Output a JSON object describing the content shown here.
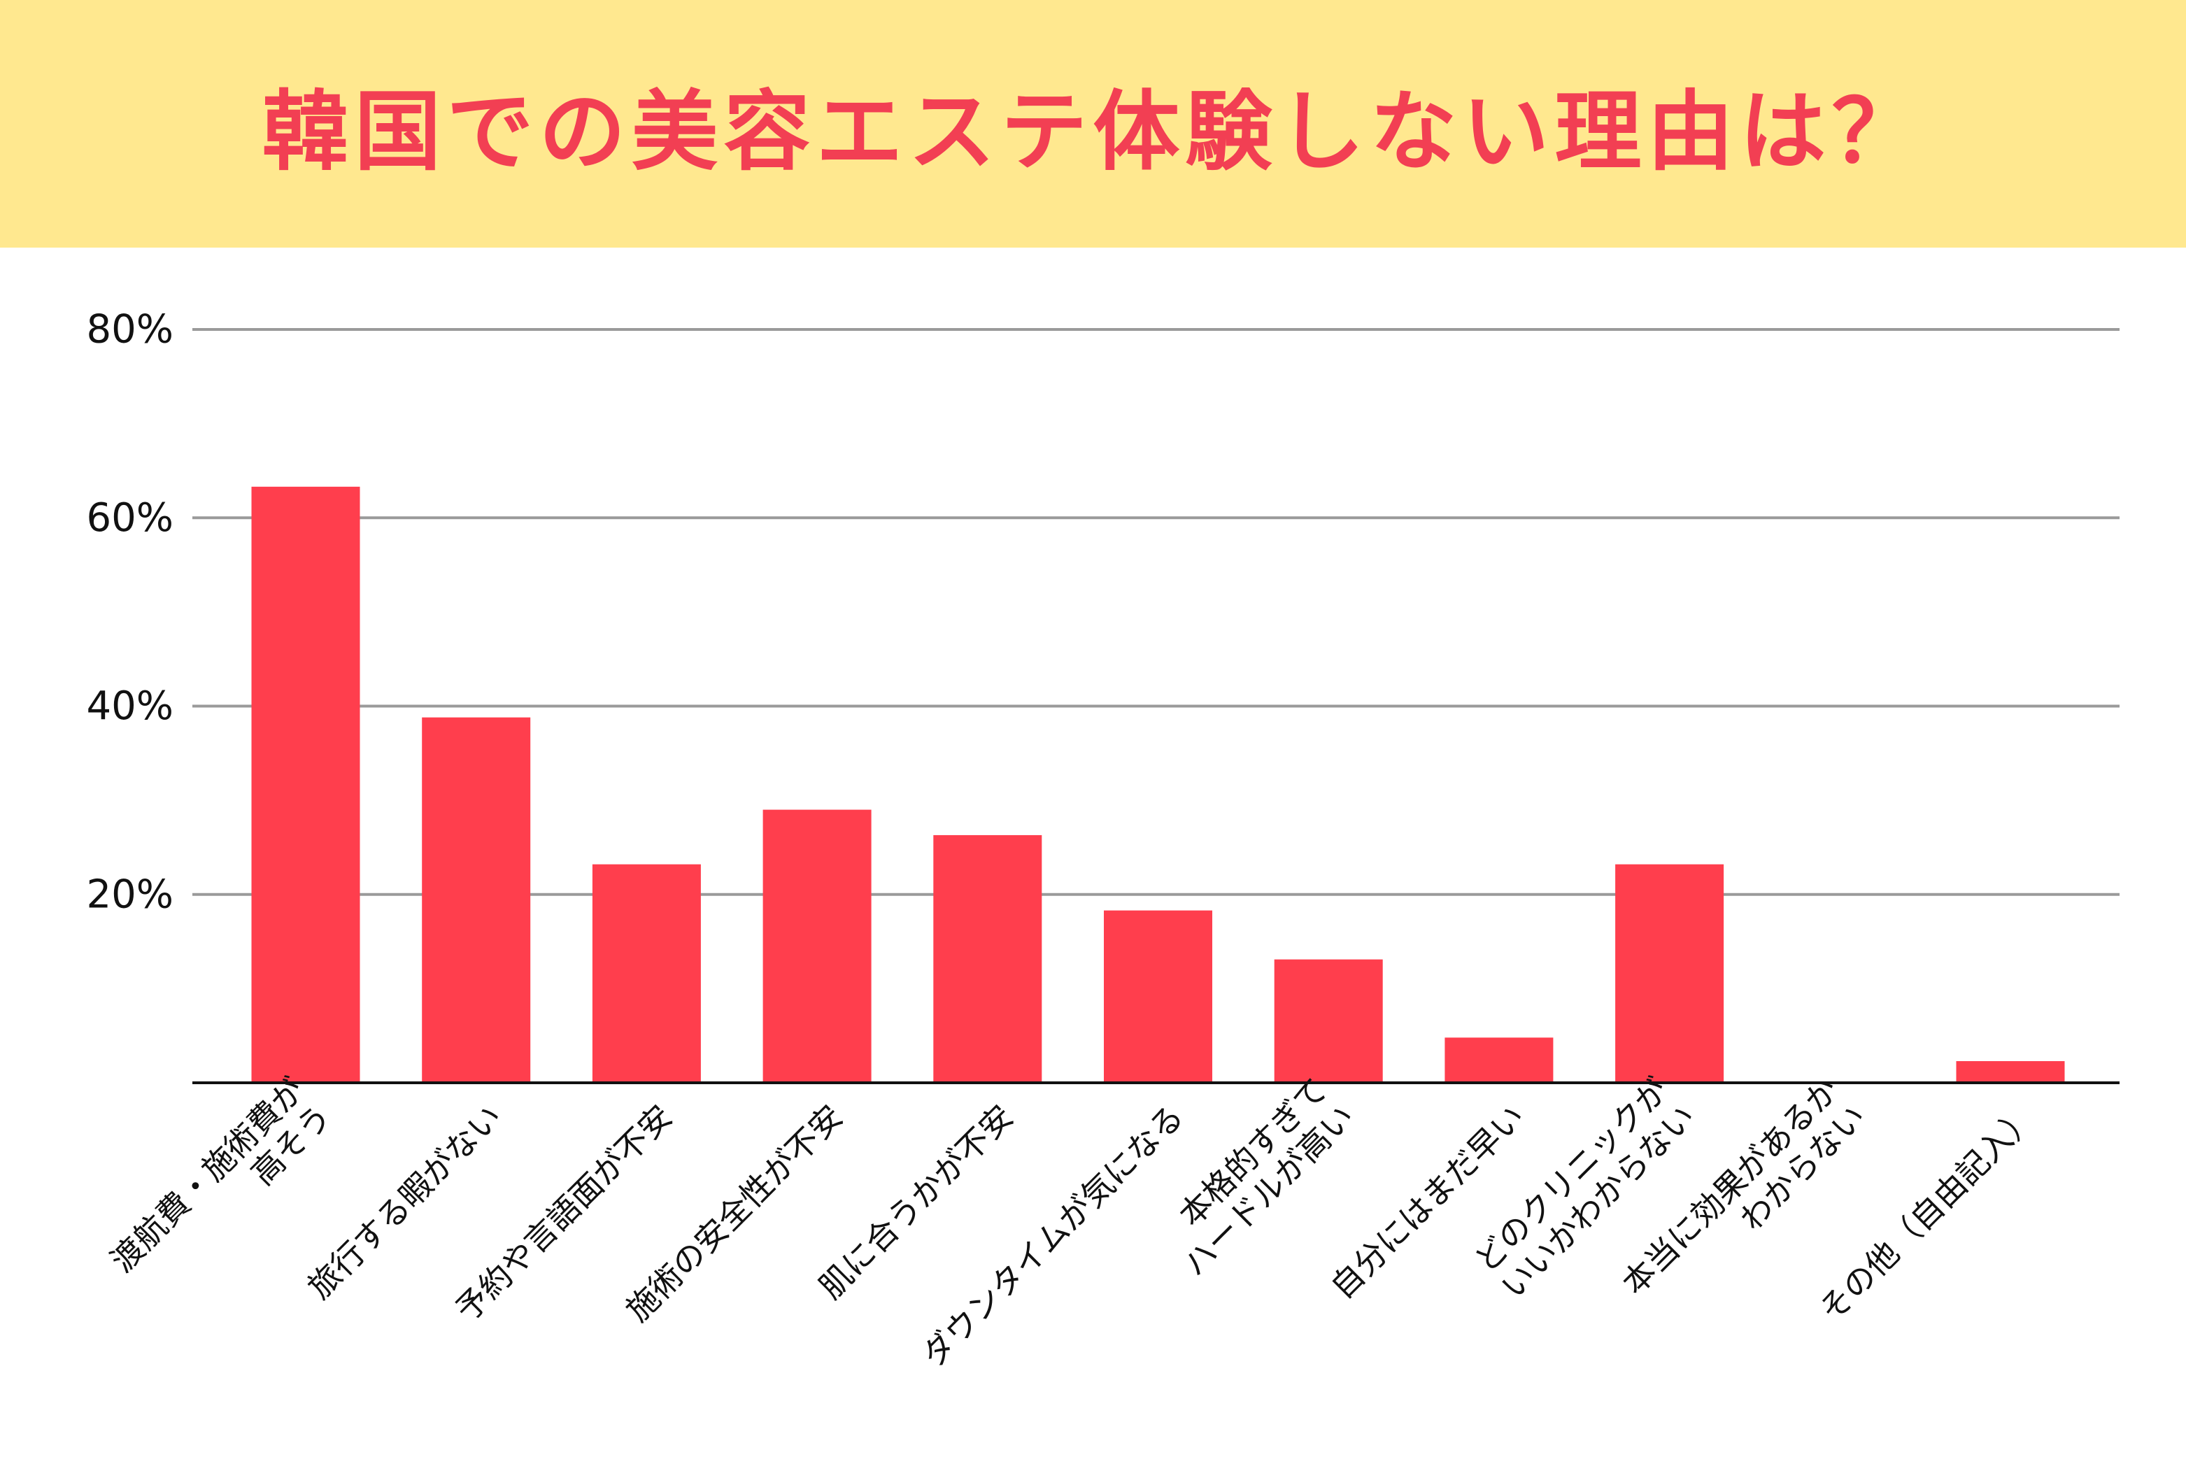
{
  "header": {
    "title": "韓国での美容エステ体験しない理由は？"
  },
  "colors": {
    "title_band": "#ffe88f",
    "title_text": "#f23f53",
    "bar": "#ff3e4d",
    "grid": "#9a9a9a",
    "axis": "#111111"
  },
  "chart_data": {
    "type": "bar",
    "categories": [
      [
        "渡航費・施術費が",
        "高そう"
      ],
      [
        "旅行する暇がない"
      ],
      [
        "予約や言語面が不安"
      ],
      [
        "施術の安全性が不安"
      ],
      [
        "肌に合うかが不安"
      ],
      [
        "ダウンタイムが気になる"
      ],
      [
        "本格的すぎて",
        "ハードルが高い"
      ],
      [
        "自分にはまだ早い"
      ],
      [
        "どのクリニックが",
        "いいかわからない"
      ],
      [
        "本当に効果があるか",
        "わからない"
      ],
      [
        "その他（自由記入）"
      ]
    ],
    "values": [
      63.3,
      38.8,
      23.2,
      29.0,
      26.3,
      18.3,
      13.1,
      4.8,
      23.2,
      0,
      2.3
    ],
    "unit": "%",
    "ylim": [
      0,
      80
    ],
    "yticks": [
      20,
      40,
      60,
      80
    ],
    "ytick_labels": [
      "20%",
      "40%",
      "60%",
      "80%"
    ],
    "grid": true,
    "legend": "none"
  }
}
